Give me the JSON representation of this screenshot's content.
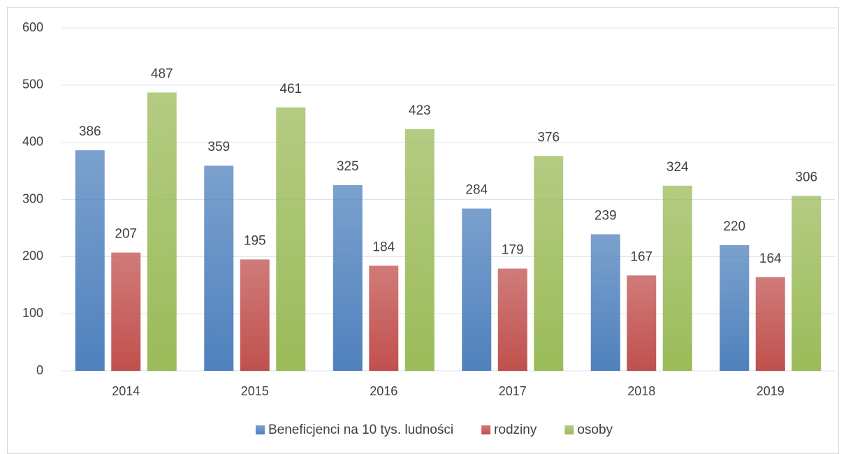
{
  "chart_data": {
    "type": "bar",
    "categories": [
      "2014",
      "2015",
      "2016",
      "2017",
      "2018",
      "2019"
    ],
    "series": [
      {
        "name": "Beneficjenci na 10 tys. ludności",
        "color": "#4f81bd",
        "values": [
          386,
          359,
          325,
          284,
          239,
          220
        ]
      },
      {
        "name": "rodziny",
        "color": "#c0504d",
        "values": [
          207,
          195,
          184,
          179,
          167,
          164
        ]
      },
      {
        "name": "osoby",
        "color": "#9bbb59",
        "values": [
          487,
          461,
          423,
          376,
          324,
          306
        ]
      }
    ],
    "ylim": [
      0,
      600
    ],
    "yticks": [
      0,
      100,
      200,
      300,
      400,
      500,
      600
    ],
    "grid": true,
    "legend": "bottom"
  }
}
